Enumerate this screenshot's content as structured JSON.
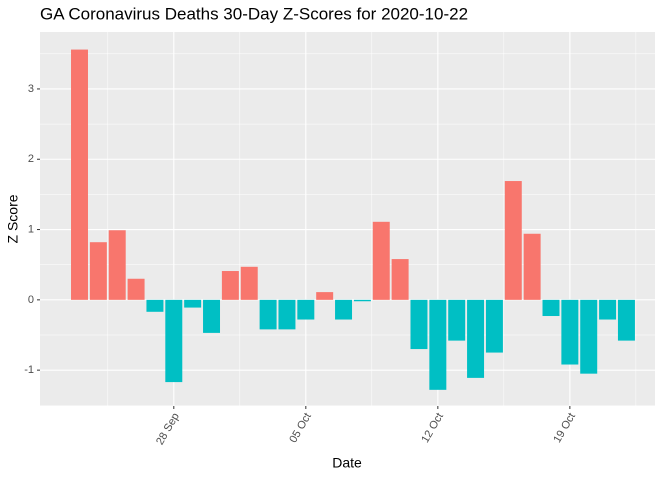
{
  "chart_data": {
    "type": "bar",
    "title": "GA Coronavirus Deaths 30-Day Z-Scores for 2020-10-22",
    "x_label": "Date",
    "y_label": "Z Score",
    "x": [
      "23 Sep",
      "24 Sep",
      "25 Sep",
      "26 Sep",
      "27 Sep",
      "28 Sep",
      "29 Sep",
      "30 Sep",
      "01 Oct",
      "02 Oct",
      "03 Oct",
      "04 Oct",
      "05 Oct",
      "06 Oct",
      "07 Oct",
      "08 Oct",
      "09 Oct",
      "10 Oct",
      "11 Oct",
      "12 Oct",
      "13 Oct",
      "14 Oct",
      "15 Oct",
      "16 Oct",
      "17 Oct",
      "18 Oct",
      "19 Oct",
      "20 Oct",
      "21 Oct",
      "22 Oct"
    ],
    "values": [
      3.56,
      0.82,
      0.99,
      0.3,
      -0.17,
      -1.17,
      -0.11,
      -0.47,
      0.41,
      0.47,
      -0.42,
      -0.42,
      -0.28,
      0.11,
      -0.28,
      -0.02,
      1.11,
      0.58,
      -0.7,
      -1.28,
      -0.58,
      -1.11,
      -0.75,
      1.69,
      0.94,
      -0.23,
      -0.92,
      -1.05,
      -0.28,
      -0.58
    ],
    "color_positive": "#F8766D",
    "color_negative": "#00BFC4",
    "ylim": [
      -1.51,
      3.81
    ],
    "yticks": [
      -1,
      0,
      1,
      2,
      3
    ],
    "xticks": [
      "28 Sep",
      "05 Oct",
      "12 Oct",
      "19 Oct"
    ],
    "grid": true
  }
}
